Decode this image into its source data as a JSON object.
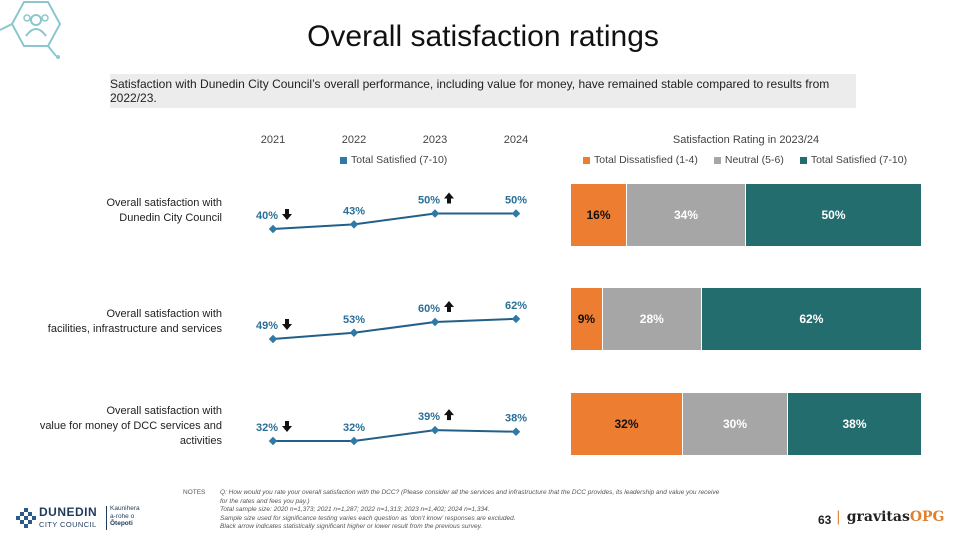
{
  "title": "Overall satisfaction ratings",
  "subtitle": "Satisfaction with Dunedin City Council’s overall performance, including value for money, have remained stable compared to results from 2022/23.",
  "colors": {
    "teal": "#246d6e",
    "orange": "#ed7d31",
    "grey": "#a6a6a6",
    "line": "#235f88",
    "marker": "#2f79a6"
  },
  "line_chart": {
    "years": [
      "2021",
      "2022",
      "2023",
      "2024"
    ],
    "legend": "Total Satisfied (7-10)"
  },
  "bar_chart": {
    "title": "Satisfaction Rating in 2023/24",
    "legend": [
      "Total Dissatisfied (1-4)",
      "Neutral (5-6)",
      "Total Satisfied (7-10)"
    ]
  },
  "rows": [
    {
      "label_lines": [
        "Overall satisfaction with",
        "Dunedin City Council"
      ]
    },
    {
      "label_lines": [
        "Overall satisfaction with",
        "facilities, infrastructure and services"
      ]
    },
    {
      "label_lines": [
        "Overall satisfaction with",
        "value for money of DCC services and",
        "activities"
      ]
    }
  ],
  "chart_data": [
    {
      "type": "line",
      "x": [
        "2021",
        "2022",
        "2023",
        "2024"
      ],
      "series": [
        {
          "name": "Total Satisfied (7-10)",
          "values": [
            40,
            43,
            50,
            50
          ],
          "labels": [
            "40%",
            "43%",
            "50%",
            "50%"
          ],
          "arrows": [
            "down",
            "",
            "up",
            ""
          ]
        },
        {
          "name": "Total Satisfied (7-10)",
          "values": [
            49,
            53,
            60,
            62
          ],
          "labels": [
            "49%",
            "53%",
            "60%",
            "62%"
          ],
          "arrows": [
            "down",
            "",
            "up",
            ""
          ]
        },
        {
          "name": "Total Satisfied (7-10)",
          "values": [
            32,
            32,
            39,
            38
          ],
          "labels": [
            "32%",
            "32%",
            "39%",
            "38%"
          ],
          "arrows": [
            "down",
            "",
            "up",
            ""
          ]
        }
      ]
    },
    {
      "type": "bar",
      "title": "Satisfaction Rating in 2023/24",
      "stacked": true,
      "orientation": "horizontal",
      "series": [
        {
          "name": "Total Dissatisfied (1-4)",
          "values": [
            16,
            9,
            32
          ],
          "labels": [
            "16%",
            "9%",
            "32%"
          ]
        },
        {
          "name": "Neutral (5-6)",
          "values": [
            34,
            28,
            30
          ],
          "labels": [
            "34%",
            "28%",
            "30%"
          ]
        },
        {
          "name": "Total Satisfied (7-10)",
          "values": [
            50,
            62,
            38
          ],
          "labels": [
            "50%",
            "62%",
            "38%"
          ]
        }
      ]
    }
  ],
  "notes": {
    "label": "NOTES",
    "lines": [
      "Q: How would you rate your overall satisfaction with the DCC? (Please consider all the services and infrastructure that the DCC provides, its leadership and value you receive",
      "for the rates and fees you pay.)",
      "Total sample size: 2020 n=1,373; 2021 n=1,287; 2022 n=1,313; 2023 n=1,402; 2024 n=1,334.",
      "Sample size used for significance testing varies each question as ‘don’t know’ responses are excluded.",
      "Black arrow indicates statistically significant higher or lower result from the previous survey."
    ]
  },
  "footer": {
    "page_number": "63",
    "brand_main": "gravitas",
    "brand_suffix": "OPG",
    "logo_name": "DUNEDIN",
    "logo_sub": "CITY COUNCIL",
    "logo_maori_1": "Kaunihera",
    "logo_maori_2": "a-rohe o",
    "logo_maori_3": "Ōtepoti"
  },
  "icons": {
    "top_left": "people-network-icon"
  }
}
